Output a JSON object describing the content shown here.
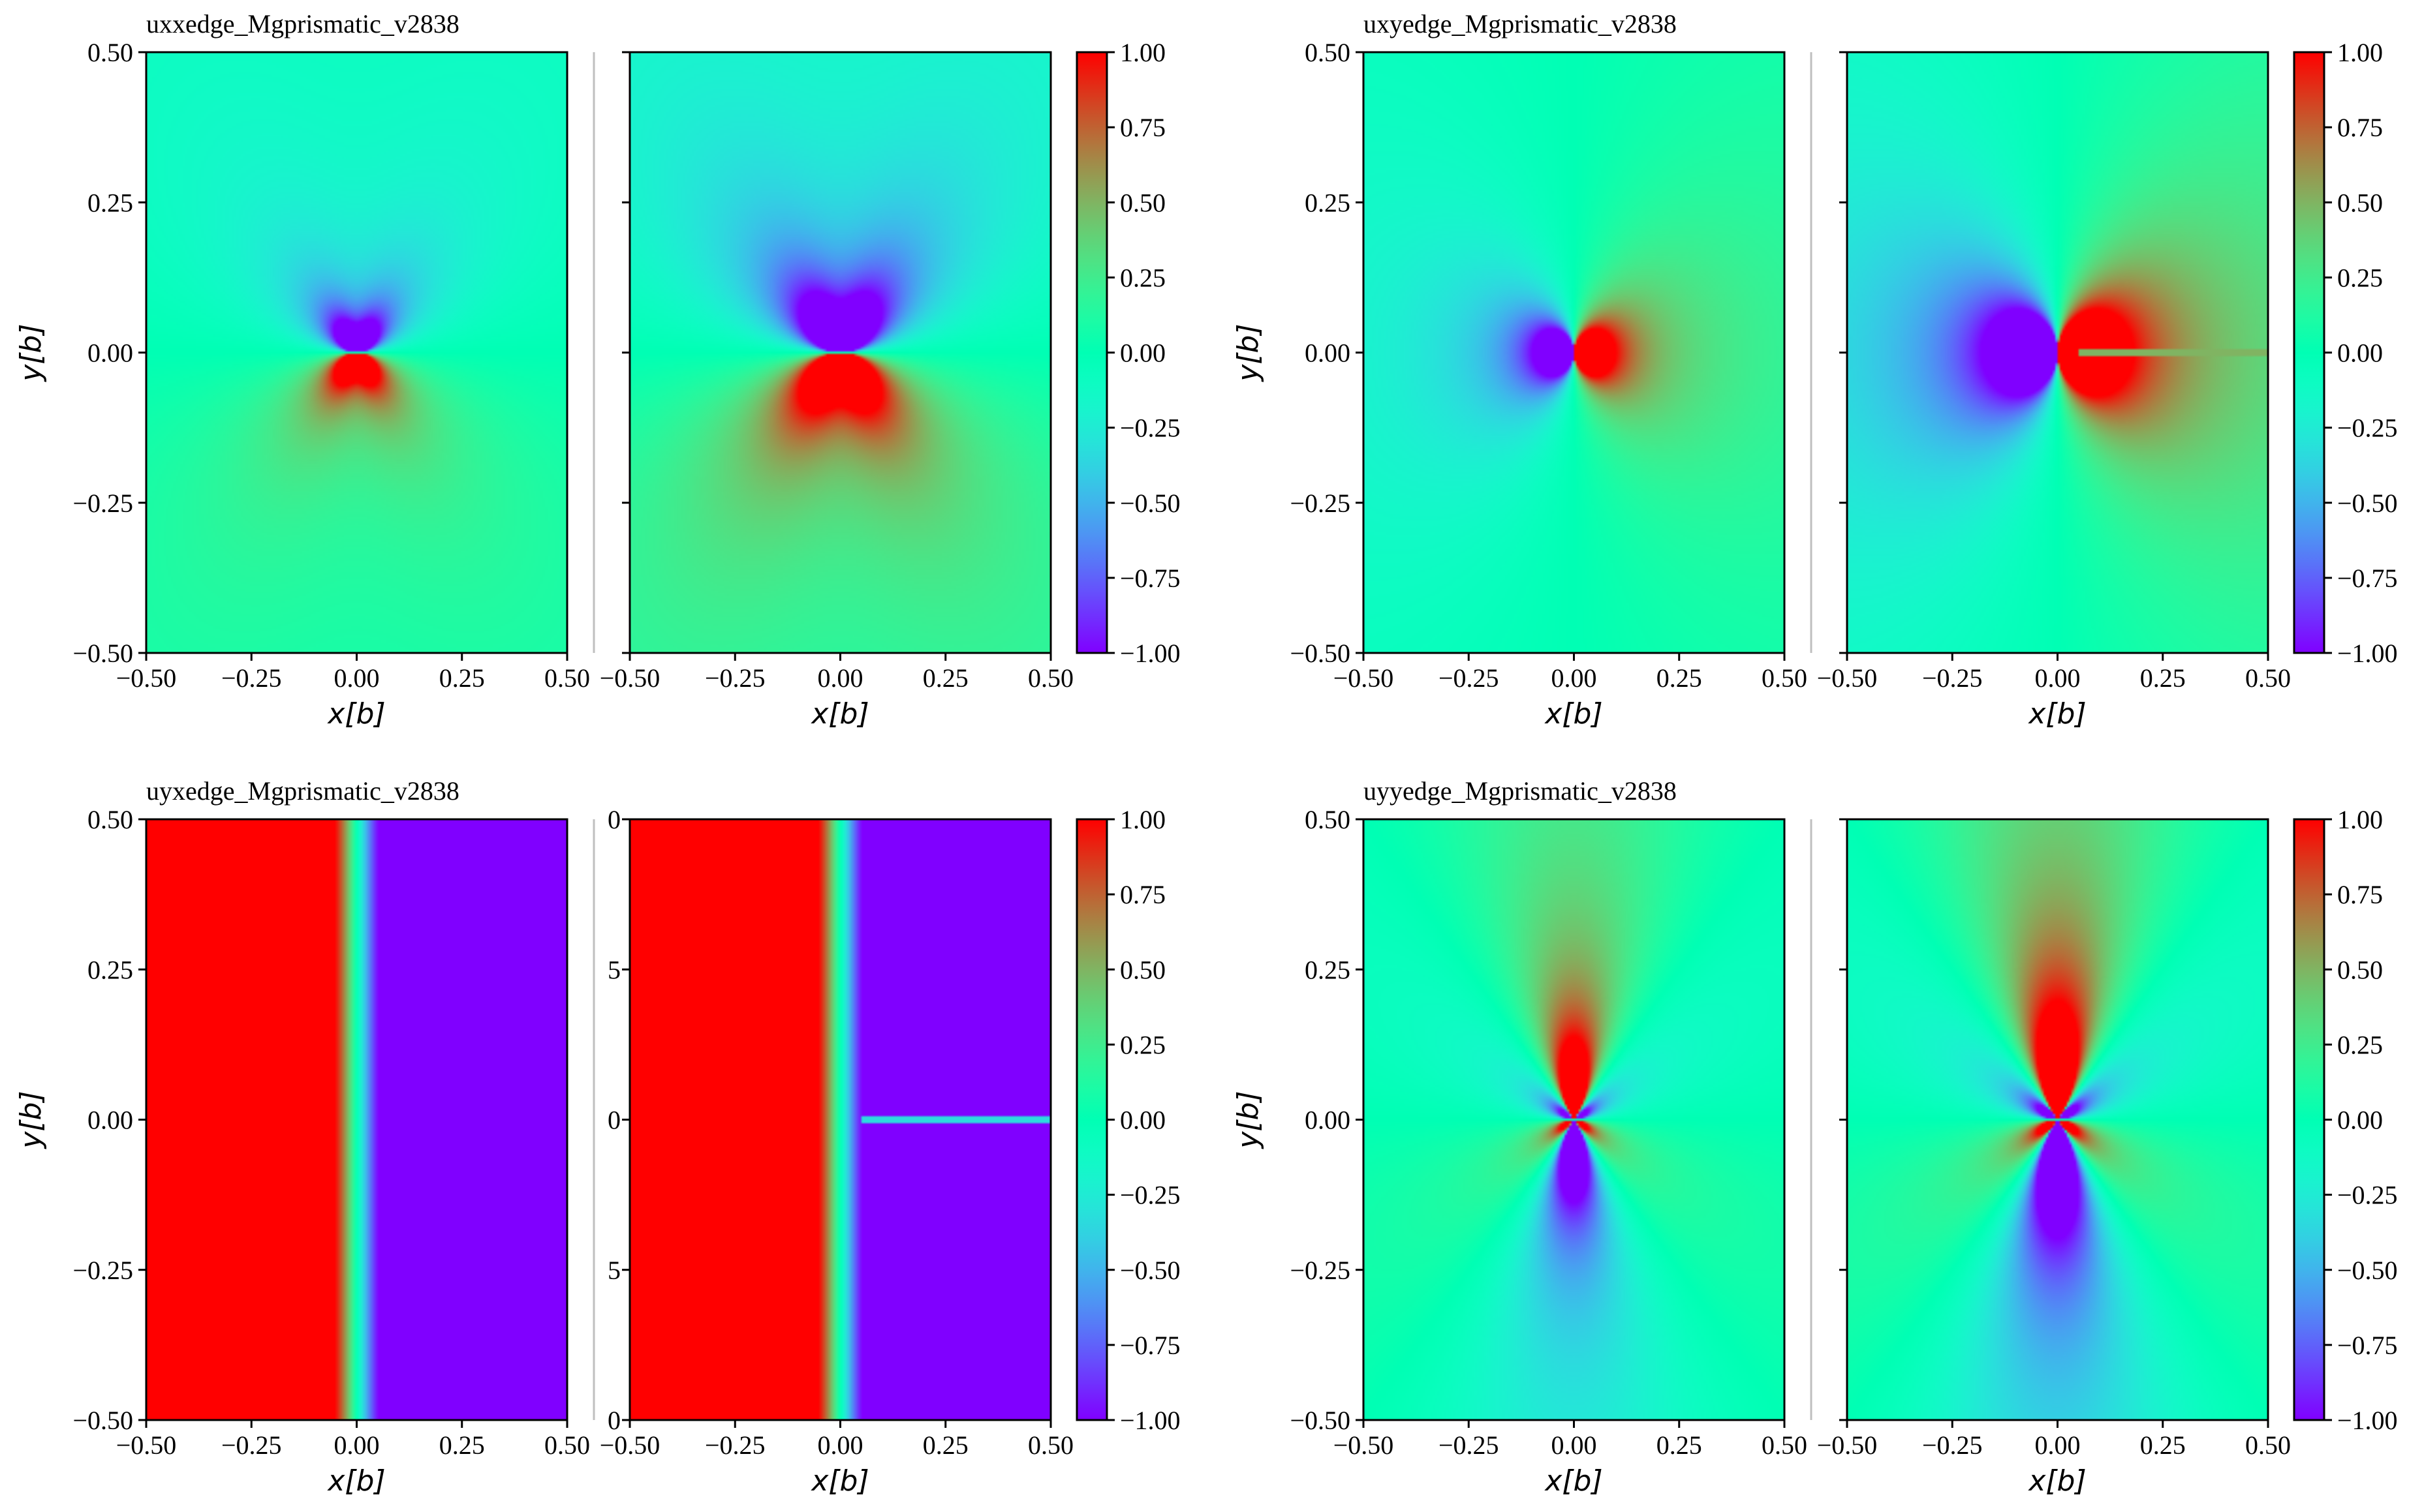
{
  "chart_data": {
    "type": "heatmap",
    "layout": "2x2 groups, each with two side-by-side field maps and a shared colorbar",
    "colorbar": {
      "colormap": "rainbow",
      "vmin": -1.0,
      "vmax": 1.0,
      "ticks": [
        "1.00",
        "0.75",
        "0.50",
        "0.25",
        "0.00",
        "−0.25",
        "−0.50",
        "−0.75",
        "−1.00"
      ]
    },
    "x_ticks": [
      "−0.50",
      "−0.25",
      "0.00",
      "0.25",
      "0.50"
    ],
    "y_ticks": [
      "0.50",
      "0.25",
      "0.00",
      "−0.25",
      "−0.50"
    ],
    "y_ticks_cropped": [
      "0",
      "5",
      "0",
      "5",
      "0"
    ],
    "xlim": [
      -0.5,
      0.5
    ],
    "ylim": [
      -0.5,
      0.5
    ],
    "xlabel": "x[b]",
    "ylabel": "y[b]",
    "groups": [
      {
        "id": "uxx",
        "title": "uxxedge_Mgprismatic_v2838",
        "pattern": "uxx",
        "left_panel_scale": 0.55,
        "right_panel_scale": 1.0,
        "artifact_line": false
      },
      {
        "id": "uxy",
        "title": "uxyedge_Mgprismatic_v2838",
        "pattern": "uxy",
        "left_panel_scale": 0.55,
        "right_panel_scale": 1.0,
        "artifact_line": true
      },
      {
        "id": "uyx",
        "title": "uyxedge_Mgprismatic_v2838",
        "pattern": "uyx",
        "left_panel_scale": 1.0,
        "right_panel_scale": 1.0,
        "artifact_line": true
      },
      {
        "id": "uyy",
        "title": "uyyedge_Mgprismatic_v2838",
        "pattern": "uyy",
        "left_panel_scale": 0.7,
        "right_panel_scale": 1.0,
        "artifact_line": false
      }
    ]
  }
}
